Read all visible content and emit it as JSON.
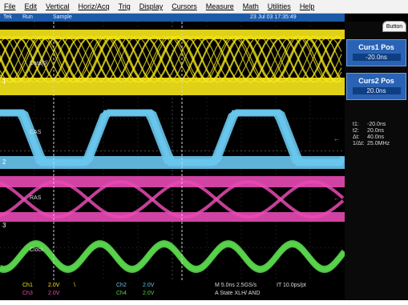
{
  "menu": [
    "File",
    "Edit",
    "Vertical",
    "Horiz/Acq",
    "Trig",
    "Display",
    "Cursors",
    "Measure",
    "Math",
    "Utilities",
    "Help"
  ],
  "status": {
    "brand": "Tek",
    "run_state": "Run",
    "mode": "Sample",
    "datetime": "23 Jul 03 17:35:49"
  },
  "button_tab": "Button",
  "cursors": {
    "curs1": {
      "title": "Curs1 Pos",
      "value": "-20.0ns"
    },
    "curs2": {
      "title": "Curs2 Pos",
      "value": "20.0ns"
    },
    "readouts": [
      {
        "key": "t1:",
        "value": "-20.0ns"
      },
      {
        "key": "t2:",
        "value": "20.0ns"
      },
      {
        "key": "Δt:",
        "value": "40.0ns"
      },
      {
        "key": "1/Δt:",
        "value": "25.0MHz"
      }
    ]
  },
  "traces": [
    {
      "name": "Data[0]",
      "channel": "1",
      "color": "#f7e81a"
    },
    {
      "name": "CAS",
      "channel": "2",
      "color": "#69c7ee"
    },
    {
      "name": "RAS",
      "channel": "3",
      "color": "#e84ab4"
    },
    {
      "name": "Clock",
      "channel": "4",
      "color": "#58d24a"
    }
  ],
  "bottom": {
    "ch1": "Ch1",
    "ch1_scale": "2.0V",
    "ch1_sym": "\\",
    "ch2": "Ch2",
    "ch2_scale": "2.0V",
    "ch3": "Ch3",
    "ch3_scale": "2.0V",
    "ch4": "Ch4",
    "ch4_scale": "2.0V",
    "timebase": "M 5.0ns 2.5GS/s",
    "interp": "IT 10.0ps/pt",
    "trigger": "A  State   XLH/  AND"
  }
}
